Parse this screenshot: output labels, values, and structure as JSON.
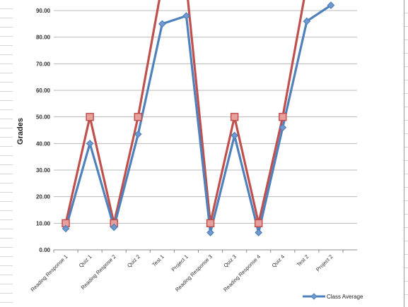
{
  "chart_data": {
    "type": "line",
    "categories": [
      "Reading Response 1",
      "Quiz 1",
      "Reading Respose 2",
      "Quiz 2",
      "Test 1",
      "Project 1",
      "Reading Response 3",
      "Quiz 3",
      "Reading Response 4",
      "Quiz 4",
      "Test 2",
      "Project 2"
    ],
    "series": [
      {
        "name": "Class Average",
        "color": "#4f81bd",
        "marker": "diamond",
        "values": [
          8.0,
          40.0,
          8.5,
          43.5,
          85.0,
          88.0,
          6.5,
          43.0,
          6.5,
          46.0,
          86.0,
          92.0
        ]
      },
      {
        "color": "#c0504d",
        "marker": "square",
        "values": [
          10,
          50,
          10,
          50,
          100,
          100,
          10,
          50,
          10,
          50,
          100,
          null
        ]
      }
    ],
    "ylabel": "Grades",
    "xlabel": "",
    "ylim": [
      0,
      90
    ],
    "yticks": [
      "0.00",
      "10.00",
      "20.00",
      "30.00",
      "40.00",
      "50.00",
      "60.00",
      "70.00",
      "80.00",
      "90.00"
    ],
    "grid": true,
    "legend": "bottom-right"
  }
}
